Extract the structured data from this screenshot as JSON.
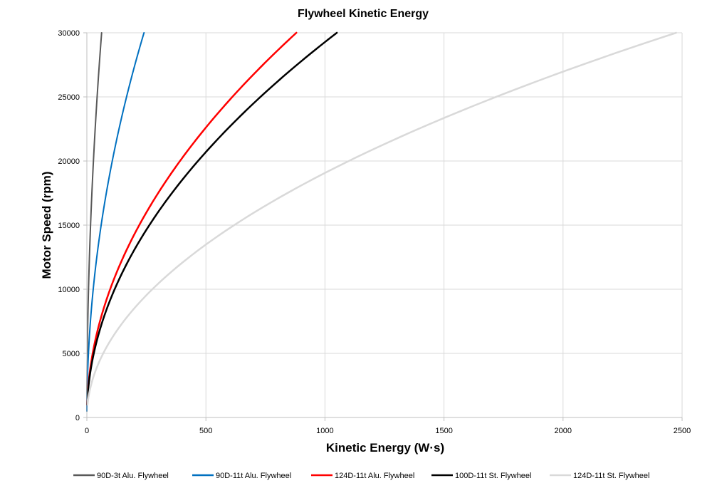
{
  "chart_data": {
    "type": "line",
    "title": "Flywheel Kinetic Energy",
    "xlabel": "Kinetic Energy (W·s)",
    "ylabel": "Motor Speed (rpm)",
    "xlim": [
      0,
      2500
    ],
    "ylim": [
      0,
      30000
    ],
    "x_ticks": [
      0,
      500,
      1000,
      1500,
      2000,
      2500
    ],
    "y_ticks": [
      0,
      5000,
      10000,
      15000,
      20000,
      25000,
      30000
    ],
    "grid": true,
    "legend_position": "bottom",
    "series": [
      {
        "name": "90D-3t Alu. Flywheel",
        "color": "#595959",
        "stroke_width": 2,
        "points": [
          [
            0.02,
            500
          ],
          [
            0.7,
            3000
          ],
          [
            1.7,
            5000
          ],
          [
            6.9,
            10000
          ],
          [
            15.5,
            15000
          ],
          [
            27.6,
            20000
          ],
          [
            43.1,
            25000
          ],
          [
            62,
            30000
          ]
        ]
      },
      {
        "name": "90D-11t Alu. Flywheel",
        "color": "#0070c0",
        "stroke_width": 2,
        "points": [
          [
            0.1,
            500
          ],
          [
            2.4,
            3000
          ],
          [
            6.7,
            5000
          ],
          [
            26.7,
            10000
          ],
          [
            60,
            15000
          ],
          [
            106.7,
            20000
          ],
          [
            166.7,
            25000
          ],
          [
            240,
            30000
          ]
        ]
      },
      {
        "name": "124D-11t Alu. Flywheel",
        "color": "#ff0000",
        "stroke_width": 2.5,
        "points": [
          [
            1,
            1000
          ],
          [
            8.8,
            3000
          ],
          [
            24.4,
            5000
          ],
          [
            97.8,
            10000
          ],
          [
            220,
            15000
          ],
          [
            391.1,
            20000
          ],
          [
            611.1,
            25000
          ],
          [
            880,
            30000
          ]
        ]
      },
      {
        "name": "100D-11t St. Flywheel",
        "color": "#000000",
        "stroke_width": 2.5,
        "points": [
          [
            1.2,
            1000
          ],
          [
            10.5,
            3000
          ],
          [
            29.2,
            5000
          ],
          [
            116.7,
            10000
          ],
          [
            262.5,
            15000
          ],
          [
            466.7,
            20000
          ],
          [
            729.2,
            25000
          ],
          [
            1050,
            30000
          ]
        ]
      },
      {
        "name": "124D-11t St. Flywheel",
        "color": "#d9d9d9",
        "stroke_width": 2.5,
        "points": [
          [
            2.8,
            1000
          ],
          [
            24.8,
            3000
          ],
          [
            68.8,
            5000
          ],
          [
            275,
            10000
          ],
          [
            618.8,
            15000
          ],
          [
            1100,
            20000
          ],
          [
            1718.8,
            25000
          ],
          [
            2475,
            30000
          ]
        ]
      }
    ]
  }
}
